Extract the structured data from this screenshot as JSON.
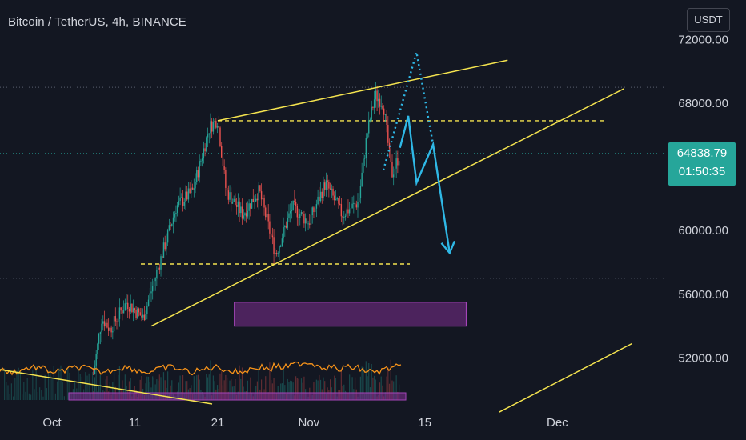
{
  "header": {
    "title": "Bitcoin / TetherUS, 4h, BINANCE",
    "currency": "USDT"
  },
  "last_price": {
    "value": "64838.79",
    "countdown": "01:50:35",
    "color": "#26a69a"
  },
  "colors": {
    "background": "#131722",
    "up": "#26a69a",
    "down": "#ef5350",
    "trendline": "#f5e44f",
    "projection": "#2fb8e6",
    "zone": "#7b2d8e",
    "oscillator": "#f7931a"
  },
  "chart_data": {
    "type": "candlestick",
    "title": "Bitcoin / TetherUS, 4h, BINANCE",
    "y_ticks": [
      "72000.00",
      "68000.00",
      "60000.00",
      "56000.00",
      "52000.00"
    ],
    "x_ticks": [
      "Oct",
      "11",
      "21",
      "Nov",
      "15",
      "Dec"
    ],
    "ylim": [
      49000,
      74000
    ],
    "grid": false,
    "price_path": [
      [
        "Oct 6",
        51000
      ],
      [
        "Oct 7",
        54500
      ],
      [
        "Oct 8",
        53800
      ],
      [
        "Oct 10",
        55500
      ],
      [
        "Oct 12",
        54500
      ],
      [
        "Oct 14",
        58000
      ],
      [
        "Oct 16",
        61500
      ],
      [
        "Oct 18",
        62500
      ],
      [
        "Oct 20",
        66500
      ],
      [
        "Oct 21",
        67000
      ],
      [
        "Oct 22",
        62500
      ],
      [
        "Oct 24",
        61000
      ],
      [
        "Oct 26",
        62500
      ],
      [
        "Oct 28",
        58500
      ],
      [
        "Oct 30",
        61500
      ],
      [
        "Nov 1",
        60500
      ],
      [
        "Nov 3",
        63000
      ],
      [
        "Nov 5",
        61000
      ],
      [
        "Nov 7",
        61800
      ],
      [
        "Nov 8",
        66000
      ],
      [
        "Nov 9",
        68500
      ],
      [
        "Nov 10",
        68000
      ],
      [
        "Nov 11",
        63500
      ],
      [
        "Nov 12",
        64839
      ]
    ],
    "levels": [
      {
        "price": 69000,
        "style": "dotted"
      },
      {
        "price": 66900,
        "style": "dashed"
      },
      {
        "price": 64839,
        "style": "dotted",
        "note": "last price"
      },
      {
        "price": 57900,
        "style": "dashed"
      },
      {
        "price": 57000,
        "style": "dotted"
      }
    ],
    "trendlines": [
      {
        "from": [
          "Oct 21",
          66900
        ],
        "to": [
          "Nov 25",
          70700
        ]
      },
      {
        "from": [
          "Oct 13",
          54000
        ],
        "to": [
          "Dec 9",
          68900
        ]
      },
      {
        "from": [
          "Nov 24",
          48600
        ],
        "to": [
          "Dec 10",
          52900
        ]
      }
    ],
    "projection": [
      [
        "Nov 12",
        65200
      ],
      [
        "Nov 13",
        67200
      ],
      [
        "Nov 14",
        63000
      ],
      [
        "Nov 16",
        65400
      ],
      [
        "Nov 18",
        58600
      ]
    ],
    "projection_alt": [
      [
        "Nov 10",
        63800
      ],
      [
        "Nov 14",
        71200
      ],
      [
        "Nov 16",
        65400
      ]
    ],
    "zone": {
      "from": "Oct 23",
      "to": "Nov 20",
      "low": 54000,
      "high": 55500
    }
  }
}
